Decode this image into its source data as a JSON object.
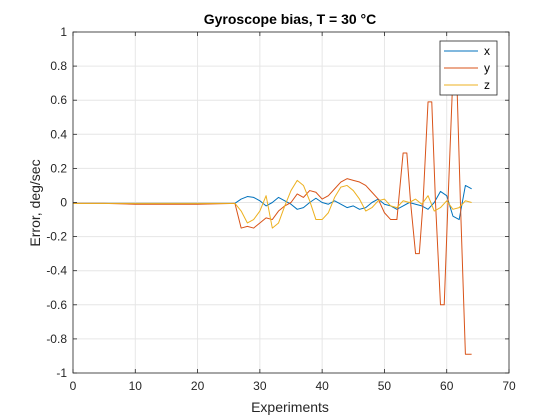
{
  "chart_data": {
    "type": "line",
    "title": "Gyroscope bias, T = 30 °C",
    "xlabel": "Experiments",
    "ylabel": "Error, deg/sec",
    "xlim": [
      0,
      70
    ],
    "ylim": [
      -1,
      1
    ],
    "xticks": [
      "0",
      "10",
      "20",
      "30",
      "40",
      "50",
      "60",
      "70"
    ],
    "yticks": [
      "-1",
      "-0.8",
      "-0.6",
      "-0.4",
      "-0.2",
      "0",
      "0.2",
      "0.4",
      "0.6",
      "0.8",
      "1"
    ],
    "grid": true,
    "legend_position": "top-right",
    "series": [
      {
        "name": "x",
        "color": "#0072BD",
        "x": [
          0,
          5,
          10,
          15,
          20,
          26,
          27,
          28,
          29,
          30,
          31,
          32,
          33,
          34,
          35,
          36,
          37,
          38,
          39,
          40,
          41,
          42,
          43,
          44,
          45,
          46,
          47,
          48,
          49,
          50,
          51,
          52,
          53,
          54,
          55,
          56,
          57,
          58,
          59,
          60,
          61,
          62,
          63,
          64
        ],
        "y": [
          -0.005,
          -0.005,
          -0.005,
          -0.005,
          -0.005,
          -0.005,
          0.02,
          0.035,
          0.03,
          0.01,
          -0.02,
          0.0,
          0.03,
          0.01,
          -0.01,
          -0.04,
          -0.03,
          0.0,
          0.025,
          0.0,
          -0.01,
          0.01,
          -0.01,
          -0.03,
          -0.02,
          -0.04,
          -0.03,
          0.0,
          0.02,
          -0.01,
          -0.02,
          -0.04,
          -0.02,
          0.0,
          -0.01,
          -0.02,
          -0.04,
          0.0,
          0.065,
          0.04,
          -0.08,
          -0.1,
          0.1,
          0.08
        ]
      },
      {
        "name": "y",
        "color": "#D95319",
        "x": [
          0,
          5,
          10,
          15,
          20,
          26,
          27,
          28,
          29,
          30,
          31,
          32,
          33,
          34,
          35,
          36,
          37,
          38,
          39,
          40,
          41,
          42,
          43,
          44,
          45,
          46,
          47,
          48,
          49,
          50,
          51,
          52,
          53,
          53.6,
          54.2,
          55,
          55.6,
          56.2,
          57,
          57.6,
          58.2,
          59,
          59.6,
          60.2,
          61,
          61.6,
          62.2,
          63,
          63.5,
          64
        ],
        "y": [
          -0.005,
          -0.005,
          -0.01,
          -0.01,
          -0.01,
          -0.005,
          -0.15,
          -0.14,
          -0.15,
          -0.12,
          -0.09,
          -0.1,
          -0.05,
          -0.02,
          0.0,
          0.05,
          0.03,
          0.07,
          0.06,
          0.02,
          0.04,
          0.08,
          0.12,
          0.14,
          0.13,
          0.12,
          0.1,
          0.06,
          0.02,
          -0.06,
          -0.1,
          -0.1,
          0.29,
          0.29,
          0.0,
          -0.3,
          -0.3,
          0.0,
          0.59,
          0.59,
          0.0,
          -0.6,
          -0.6,
          0.0,
          0.75,
          0.75,
          0.0,
          -0.89,
          -0.89,
          -0.89
        ]
      },
      {
        "name": "z",
        "color": "#EDB120",
        "x": [
          0,
          5,
          10,
          15,
          20,
          26,
          27,
          28,
          29,
          30,
          31,
          32,
          33,
          34,
          35,
          36,
          37,
          38,
          39,
          40,
          41,
          42,
          43,
          44,
          45,
          46,
          47,
          48,
          49,
          50,
          51,
          52,
          53,
          54,
          55,
          56,
          57,
          58,
          59,
          60,
          61,
          62,
          63,
          64
        ],
        "y": [
          -0.005,
          -0.005,
          -0.005,
          -0.005,
          -0.005,
          -0.005,
          -0.05,
          -0.12,
          -0.1,
          -0.05,
          0.04,
          -0.15,
          -0.12,
          -0.02,
          0.07,
          0.13,
          0.1,
          0.01,
          -0.1,
          -0.1,
          -0.06,
          0.03,
          0.09,
          0.1,
          0.07,
          0.02,
          -0.05,
          -0.03,
          0.01,
          0.02,
          -0.02,
          -0.03,
          0.01,
          0.0,
          0.02,
          -0.01,
          0.04,
          -0.05,
          -0.03,
          0.01,
          -0.04,
          -0.03,
          0.01,
          0.0
        ]
      }
    ]
  }
}
